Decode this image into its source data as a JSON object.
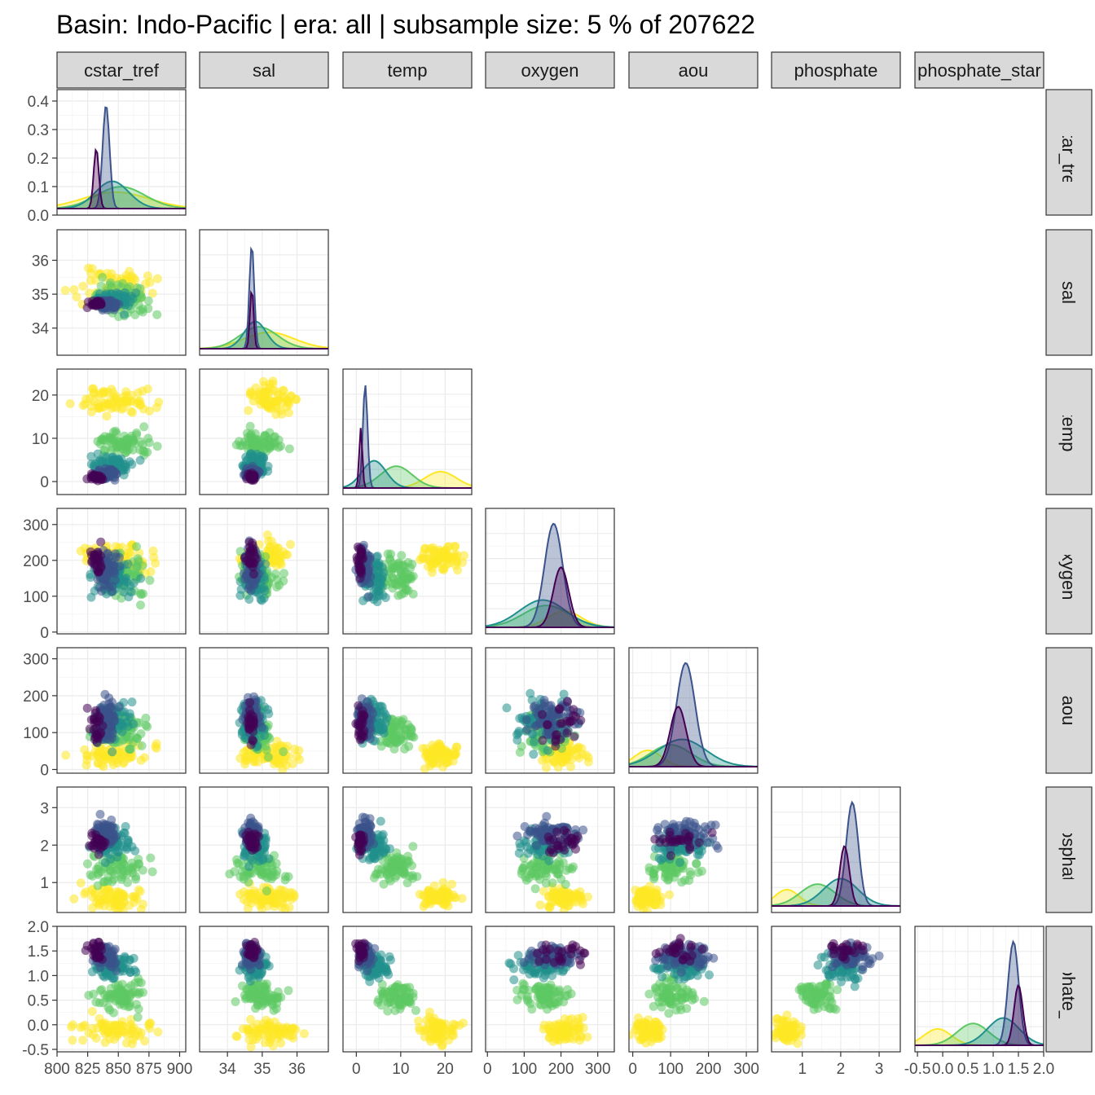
{
  "chart_data": {
    "type": "scatter",
    "title": "Basin: Indo-Pacific | era: all | subsample size: 5 % of 207622",
    "variables": [
      "cstar_tref",
      "sal",
      "temp",
      "oxygen",
      "aou",
      "phosphate",
      "phosphate_star"
    ],
    "lower_panels": "scatter",
    "diagonal_panels": "density",
    "upper_panels": "blank",
    "grid": true,
    "color_scale": "viridis",
    "colors": [
      "#440154",
      "#3b528b",
      "#21908c",
      "#5dc863",
      "#fde725"
    ],
    "axes": {
      "cstar_tref": {
        "range": [
          800,
          905
        ],
        "ticks": [
          800,
          825,
          850,
          875,
          900
        ],
        "tick_labels": [
          "800",
          "825",
          "850",
          "875",
          "900"
        ],
        "density_range": [
          0,
          0.44
        ],
        "density_ticks": [
          0.0,
          0.1,
          0.2,
          0.3,
          0.4
        ],
        "density_tick_labels": [
          "0.0",
          "0.1",
          "0.2",
          "0.3",
          "0.4"
        ]
      },
      "sal": {
        "range": [
          33.2,
          36.9
        ],
        "ticks": [
          34,
          35,
          36
        ],
        "tick_labels": [
          "34",
          "35",
          "36"
        ]
      },
      "temp": {
        "range": [
          -3,
          26
        ],
        "ticks": [
          0,
          10,
          20
        ],
        "tick_labels": [
          "0",
          "10",
          "20"
        ]
      },
      "oxygen": {
        "range": [
          -5,
          345
        ],
        "ticks": [
          0,
          100,
          200,
          300
        ],
        "tick_labels": [
          "0",
          "100",
          "200",
          "300"
        ]
      },
      "aou": {
        "range": [
          -10,
          330
        ],
        "ticks": [
          0,
          100,
          200,
          300
        ],
        "tick_labels": [
          "0",
          "100",
          "200",
          "300"
        ]
      },
      "phosphate": {
        "range": [
          0.2,
          3.55
        ],
        "ticks": [
          1,
          2,
          3
        ],
        "tick_labels": [
          "1",
          "2",
          "3"
        ]
      },
      "phosphate_star": {
        "range": [
          -0.55,
          2.0
        ],
        "ticks": [
          -0.5,
          0.0,
          0.5,
          1.0,
          1.5,
          2.0
        ],
        "tick_labels": [
          "-0.5",
          "0.0",
          "0.5",
          "1.0",
          "1.5",
          "2.0"
        ]
      }
    }
  }
}
